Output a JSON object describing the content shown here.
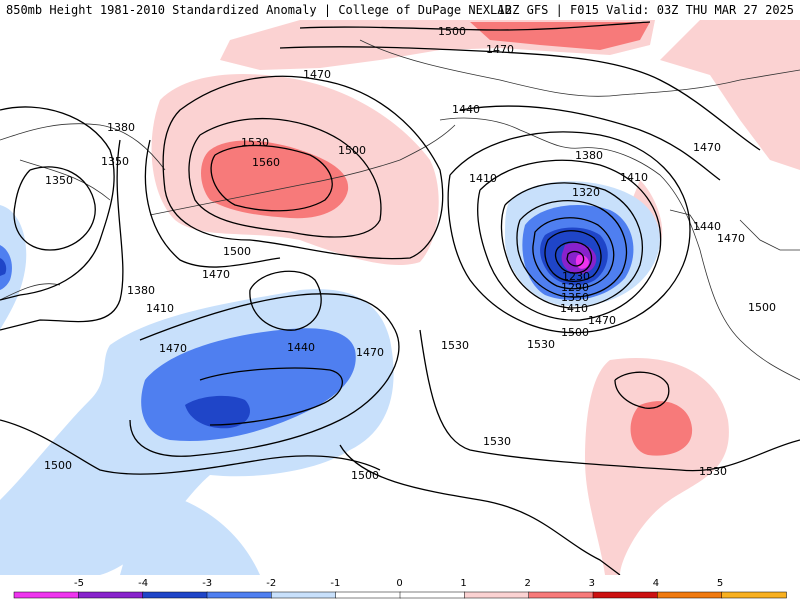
{
  "header": {
    "title_left": "850mb Height 1981-2010 Standardized Anomaly | College of DuPage NEXLAB",
    "title_right": "12Z GFS | F015 Valid: 03Z THU MAR 27 2025"
  },
  "colors": {
    "neg5": "#ee33ee",
    "neg4": "#8822cc",
    "neg3": "#1f45c8",
    "neg2": "#4f7ff0",
    "neg1": "#c8e0fb",
    "pos1": "#fbd2d2",
    "pos2": "#f77a7a",
    "pos3": "#cc1111",
    "pos4": "#f07a10",
    "pos5": "#f8b020",
    "contour": "#000000"
  },
  "contour_labels": [
    {
      "id": "l1500-top",
      "text": "1500"
    },
    {
      "id": "l1470-top",
      "text": "1470"
    },
    {
      "id": "l1470-bering",
      "text": "1470"
    },
    {
      "id": "l1440-ak",
      "text": "1440"
    },
    {
      "id": "l1380-w",
      "text": "1380"
    },
    {
      "id": "l1350-w",
      "text": "1350"
    },
    {
      "id": "l1350-w2",
      "text": "1350"
    },
    {
      "id": "l1530-a",
      "text": "1530"
    },
    {
      "id": "l1560",
      "text": "1560"
    },
    {
      "id": "l1500-b",
      "text": "1500"
    },
    {
      "id": "l1500-c",
      "text": "1500"
    },
    {
      "id": "l1470-c",
      "text": "1470"
    },
    {
      "id": "l1380-c",
      "text": "1380"
    },
    {
      "id": "l1410-c",
      "text": "1410"
    },
    {
      "id": "l1410-d",
      "text": "1410"
    },
    {
      "id": "l1380-d",
      "text": "1380"
    },
    {
      "id": "l1320",
      "text": "1320"
    },
    {
      "id": "l1410-e",
      "text": "1410"
    },
    {
      "id": "l1230",
      "text": "1230"
    },
    {
      "id": "l1290",
      "text": "1290"
    },
    {
      "id": "l1350-e",
      "text": "1350"
    },
    {
      "id": "l1410-f",
      "text": "1410"
    },
    {
      "id": "l1470-f",
      "text": "1470"
    },
    {
      "id": "l1500-f",
      "text": "1500"
    },
    {
      "id": "l1530-f",
      "text": "1530"
    },
    {
      "id": "l1470-ne",
      "text": "1470"
    },
    {
      "id": "l1440-ne",
      "text": "1440"
    },
    {
      "id": "l1470-ne2",
      "text": "1470"
    },
    {
      "id": "l1500-ne",
      "text": "1500"
    },
    {
      "id": "l1440-mid",
      "text": "1440"
    },
    {
      "id": "l1470-mid",
      "text": "1470"
    },
    {
      "id": "l1470-mid2",
      "text": "1470"
    },
    {
      "id": "l1530-mid",
      "text": "1530"
    },
    {
      "id": "l1500-sw",
      "text": "1500"
    },
    {
      "id": "l1500-s",
      "text": "1500"
    },
    {
      "id": "l1530-s",
      "text": "1530"
    },
    {
      "id": "l1530-se",
      "text": "1530"
    }
  ],
  "legend": {
    "ticks": [
      "-5",
      "-4",
      "-3",
      "-2",
      "-1",
      "0",
      "1",
      "2",
      "3",
      "4",
      "5"
    ]
  }
}
